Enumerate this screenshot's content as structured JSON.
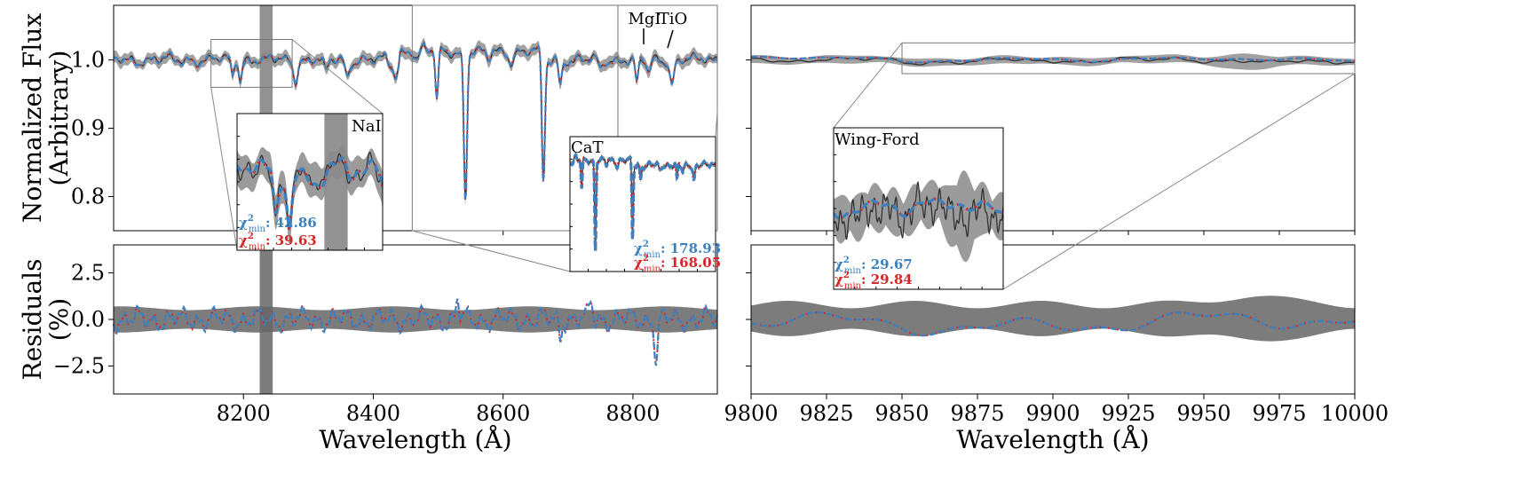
{
  "chart_data": [
    {
      "panel": "top-left",
      "type": "line",
      "ylabel_lines": [
        "Normalized Flux",
        "(Arbitrary)"
      ],
      "xlim": [
        8000,
        8930
      ],
      "ylim": [
        0.75,
        1.08
      ],
      "yticks": [
        0.8,
        0.9,
        1.0
      ],
      "ytick_labels": [
        "0.8",
        "0.9",
        "1.0"
      ],
      "shaded_band_x": [
        8225,
        8245
      ],
      "series": [
        {
          "kind": "data",
          "color": "#333333"
        },
        {
          "kind": "model",
          "color": "#d62728"
        },
        {
          "kind": "model",
          "color": "#3c80c0"
        }
      ],
      "line_annotations": [
        "MgI",
        "TiO"
      ],
      "insets": [
        {
          "label": "NaI",
          "zoom_x": [
            8150,
            8275
          ],
          "zoom_y": [
            0.96,
            1.03
          ],
          "chi2": [
            {
              "label": "χ²min: 42.86",
              "color": "#3c80c0"
            },
            {
              "label": "χ²min: 39.63",
              "color": "#d62728"
            }
          ]
        },
        {
          "label": "CaT",
          "zoom_x": [
            8460,
            8930
          ],
          "zoom_y": [
            0.75,
            1.08
          ],
          "chi2": [
            {
              "label": "χ²min: 178.93",
              "color": "#3c80c0"
            },
            {
              "label": "χ²min: 168.05",
              "color": "#d62728"
            }
          ]
        }
      ]
    },
    {
      "panel": "bottom-left",
      "type": "line",
      "xlabel": "Wavelength (Å)",
      "ylabel_lines": [
        "Residuals",
        "(%)"
      ],
      "xlim": [
        8000,
        8930
      ],
      "ylim": [
        -4.0,
        4.0
      ],
      "xticks": [
        8200,
        8400,
        8600,
        8800
      ],
      "xtick_labels": [
        "8200",
        "8400",
        "8600",
        "8800"
      ],
      "yticks": [
        -2.5,
        0.0,
        2.5
      ],
      "ytick_labels": [
        "−2.5",
        "0.0",
        "2.5"
      ],
      "uncertainty_band": [
        -0.6,
        0.6
      ]
    },
    {
      "panel": "top-right",
      "type": "line",
      "xlim": [
        9800,
        10000
      ],
      "ylim": [
        0.75,
        1.08
      ],
      "insets": [
        {
          "label": "Wing-Ford",
          "zoom_x": [
            9850,
            10000
          ],
          "zoom_y": [
            0.98,
            1.025
          ],
          "chi2": [
            {
              "label": "χ²min: 29.67",
              "color": "#3c80c0"
            },
            {
              "label": "χ²min: 29.84",
              "color": "#d62728"
            }
          ]
        }
      ]
    },
    {
      "panel": "bottom-right",
      "type": "line",
      "xlabel": "Wavelength (Å)",
      "xlim": [
        9800,
        10000
      ],
      "ylim": [
        -4.0,
        4.0
      ],
      "xticks": [
        9800,
        9825,
        9850,
        9875,
        9900,
        9925,
        9950,
        9975,
        10000
      ],
      "xtick_labels": [
        "9800",
        "9825",
        "9850",
        "9875",
        "9900",
        "9925",
        "9950",
        "9975",
        "10000"
      ]
    }
  ]
}
